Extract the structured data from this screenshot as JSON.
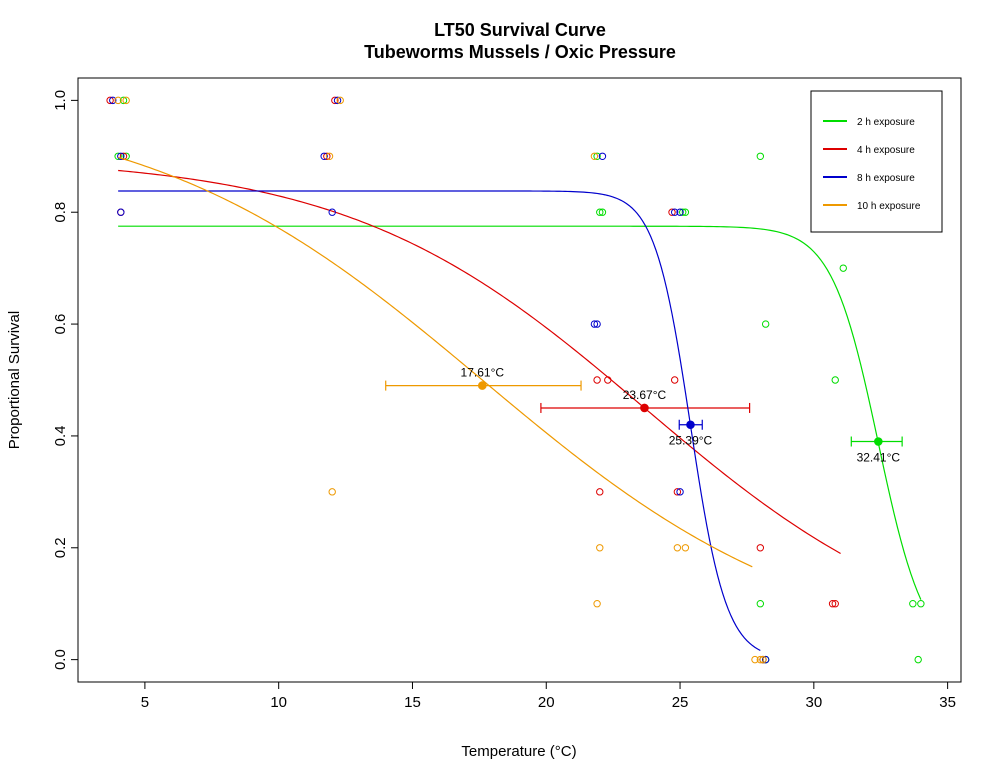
{
  "chart_data": {
    "type": "scatter",
    "title": "LT50 Survival Curve",
    "subtitle": "Tubeworms Mussels / Oxic Pressure",
    "xlabel": "Temperature (°C)",
    "ylabel": "Proportional Survival",
    "xlim": [
      2.5,
      35.5
    ],
    "ylim": [
      -0.04,
      1.04
    ],
    "x_ticks": [
      5,
      10,
      15,
      20,
      25,
      30,
      35
    ],
    "y_ticks": [
      0.0,
      0.2,
      0.4,
      0.6,
      0.8,
      1.0
    ],
    "x_tick_labels": [
      "5",
      "10",
      "15",
      "20",
      "25",
      "30",
      "35"
    ],
    "y_tick_labels": [
      "0.0",
      "0.2",
      "0.4",
      "0.6",
      "0.8",
      "1.0"
    ],
    "legend_position": "top-right",
    "grid": false,
    "series": [
      {
        "name": "2 h exposure",
        "color": "#00dd00",
        "fit": {
          "bottom": 0.0,
          "top": 0.775,
          "lt50": 32.41,
          "slope": 1.15,
          "x_range": [
            4.0,
            34.0
          ]
        },
        "lt50": {
          "x": 32.41,
          "y": 0.39,
          "ci": [
            31.4,
            33.3
          ],
          "label": "32.41°C"
        },
        "points": [
          [
            4.0,
            0.9
          ],
          [
            4.2,
            1.0
          ],
          [
            4.3,
            0.9
          ],
          [
            21.9,
            0.9
          ],
          [
            22.0,
            0.8
          ],
          [
            22.1,
            0.8
          ],
          [
            25.1,
            0.8
          ],
          [
            25.2,
            0.8
          ],
          [
            28.0,
            0.9
          ],
          [
            28.0,
            0.1
          ],
          [
            28.2,
            0.0
          ],
          [
            28.2,
            0.6
          ],
          [
            30.8,
            0.5
          ],
          [
            31.1,
            0.7
          ],
          [
            33.7,
            0.1
          ],
          [
            34.0,
            0.1
          ],
          [
            33.9,
            0.0
          ]
        ]
      },
      {
        "name": "4 h exposure",
        "color": "#dd0000",
        "fit": {
          "bottom": 0.0,
          "top": 0.9,
          "lt50": 23.67,
          "slope": 0.18,
          "x_range": [
            4.0,
            31.0
          ]
        },
        "lt50": {
          "x": 23.67,
          "y": 0.45,
          "ci": [
            19.8,
            27.6
          ],
          "label": "23.67°C"
        },
        "points": [
          [
            3.7,
            1.0
          ],
          [
            4.1,
            0.8
          ],
          [
            4.2,
            0.9
          ],
          [
            12.1,
            1.0
          ],
          [
            11.8,
            0.9
          ],
          [
            21.9,
            0.5
          ],
          [
            22.0,
            0.3
          ],
          [
            22.3,
            0.5
          ],
          [
            24.8,
            0.5
          ],
          [
            24.9,
            0.3
          ],
          [
            24.7,
            0.8
          ],
          [
            28.0,
            0.2
          ],
          [
            28.1,
            0.0
          ],
          [
            30.7,
            0.1
          ],
          [
            30.8,
            0.1
          ]
        ]
      },
      {
        "name": "8 h exposure",
        "color": "#0000cc",
        "fit": {
          "bottom": 0.0,
          "top": 0.838,
          "lt50": 25.39,
          "slope": 1.5,
          "x_range": [
            4.0,
            28.0
          ]
        },
        "lt50": {
          "x": 25.39,
          "y": 0.42,
          "ci": [
            24.97,
            25.83
          ],
          "label": "25.39°C"
        },
        "points": [
          [
            3.8,
            1.0
          ],
          [
            4.1,
            0.9
          ],
          [
            4.1,
            0.8
          ],
          [
            12.2,
            1.0
          ],
          [
            11.7,
            0.9
          ],
          [
            12.0,
            0.8
          ],
          [
            21.8,
            0.6
          ],
          [
            21.9,
            0.6
          ],
          [
            22.1,
            0.9
          ],
          [
            24.8,
            0.8
          ],
          [
            25.0,
            0.3
          ],
          [
            25.0,
            0.8
          ],
          [
            28.1,
            0.0
          ],
          [
            28.2,
            0.0
          ]
        ]
      },
      {
        "name": "10 h exposure",
        "color": "#ee9900",
        "fit": {
          "bottom": 0.0,
          "top": 1.0,
          "lt50": 17.61,
          "slope": 0.16,
          "x_range": [
            4.0,
            27.7
          ]
        },
        "lt50": {
          "x": 17.61,
          "y": 0.49,
          "ci": [
            14.0,
            21.3
          ],
          "label": "17.61°C"
        },
        "points": [
          [
            4.0,
            1.0
          ],
          [
            4.3,
            1.0
          ],
          [
            12.3,
            1.0
          ],
          [
            11.9,
            0.9
          ],
          [
            12.0,
            0.3
          ],
          [
            21.8,
            0.9
          ],
          [
            22.0,
            0.2
          ],
          [
            21.9,
            0.1
          ],
          [
            24.9,
            0.2
          ],
          [
            25.2,
            0.2
          ],
          [
            27.8,
            0.0
          ],
          [
            28.0,
            0.0
          ],
          [
            28.1,
            0.0
          ]
        ]
      }
    ]
  }
}
